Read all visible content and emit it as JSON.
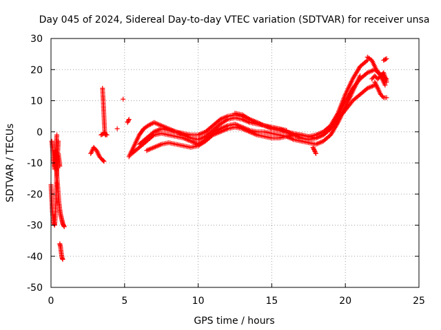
{
  "chart_data": {
    "type": "scatter",
    "title": "Day 045 of 2024, Sidereal Day-to-day VTEC variation (SDTVAR) for receiver unsa",
    "xlabel": "GPS time / hours",
    "ylabel": "SDTVAR / TECUs",
    "xlim": [
      0,
      25
    ],
    "ylim": [
      -50,
      30
    ],
    "xticks": [
      "0",
      "5",
      "10",
      "15",
      "20",
      "25"
    ],
    "yticks": [
      "-50",
      "-40",
      "-30",
      "-20",
      "-10",
      "0",
      "10",
      "20",
      "30"
    ],
    "grid": true,
    "marker": "+",
    "series": [
      {
        "name": "SDTVAR",
        "color": "#ff0000",
        "segments": [
          {
            "x": [
              0.0,
              0.05,
              0.1,
              0.15,
              0.2,
              0.25,
              0.3,
              0.35,
              0.4,
              0.45,
              0.5
            ],
            "y": [
              -17,
              -22,
              -26,
              -28,
              -29.5,
              -30,
              -27,
              -20,
              -12,
              -7,
              -3
            ]
          },
          {
            "x": [
              0.05,
              0.1,
              0.15,
              0.2,
              0.25,
              0.3,
              0.35,
              0.4
            ],
            "y": [
              -3,
              -5,
              -8,
              -10,
              -12,
              -8,
              -4,
              -1
            ]
          },
          {
            "x": [
              0.3,
              0.35,
              0.4,
              0.45,
              0.5,
              0.55,
              0.6,
              0.65,
              0.7,
              0.75,
              0.8,
              0.85,
              0.9
            ],
            "y": [
              -6,
              -10,
              -14,
              -17,
              -20,
              -23,
              -25,
              -26.5,
              -27.5,
              -28.5,
              -29.5,
              -30,
              -30.5
            ]
          },
          {
            "x": [
              0.5,
              0.55,
              0.6
            ],
            "y": [
              -7,
              -9,
              -11
            ]
          },
          {
            "x": [
              0.6,
              0.65,
              0.7,
              0.75,
              0.8
            ],
            "y": [
              -36,
              -37,
              -39,
              -40.5,
              -41
            ]
          },
          {
            "x": [
              2.7,
              2.9,
              3.1,
              3.3,
              3.5,
              3.6
            ],
            "y": [
              -7,
              -5,
              -6,
              -8,
              -9,
              -9.5
            ]
          },
          {
            "x": [
              3.5,
              3.55,
              3.6,
              3.65,
              3.7
            ],
            "y": [
              14,
              10,
              5,
              0,
              -1
            ]
          },
          {
            "x": [
              3.4,
              3.6,
              3.8
            ],
            "y": [
              -1,
              -0.5,
              -1
            ]
          },
          {
            "x": [
              4.5
            ],
            "y": [
              1
            ]
          },
          {
            "x": [
              4.9
            ],
            "y": [
              10.5
            ]
          },
          {
            "x": [
              5.2,
              5.3
            ],
            "y": [
              3,
              4
            ]
          },
          {
            "x": [
              5.3,
              5.5,
              5.8,
              6.0,
              6.3,
              6.6,
              7.0,
              7.5,
              8.0,
              8.5,
              9.0,
              9.5,
              10.0,
              10.5,
              11.0,
              11.5,
              12.0,
              12.5,
              13.0,
              13.5,
              14.0,
              14.5,
              15.0,
              15.5,
              16.0,
              16.5,
              17.0,
              17.5,
              18.0,
              18.5,
              19.0,
              19.5,
              20.0,
              20.5,
              21.0,
              21.5,
              22.0,
              22.5,
              22.8
            ],
            "y": [
              -8,
              -6,
              -3,
              -1,
              1,
              2,
              3,
              2,
              1,
              0,
              -1,
              -2,
              -2.5,
              -1.5,
              0.5,
              2.5,
              4,
              4.5,
              4,
              3,
              2.5,
              2,
              1.5,
              1,
              0,
              -1,
              -2,
              -2.5,
              -2,
              -1,
              1,
              5,
              10,
              14,
              17,
              19,
              20,
              18,
              17
            ]
          },
          {
            "x": [
              5.5,
              6.0,
              6.5,
              7.0,
              7.5,
              8.0,
              8.5,
              9.0,
              9.5,
              10.0,
              10.5,
              11.0,
              11.5,
              12.0,
              12.5,
              13.0,
              13.5,
              14.0,
              14.5,
              15.0,
              15.5,
              16.0,
              16.5,
              17.0,
              17.5,
              18.0,
              18.5,
              19.0,
              19.5,
              20.0,
              20.5,
              21.0
            ],
            "y": [
              -7,
              -5,
              -3,
              -1,
              -0.5,
              -1,
              -1.5,
              -2,
              -3,
              -4,
              -2.5,
              -0.5,
              1,
              2,
              2.5,
              1.5,
              0.5,
              0,
              0,
              -0.5,
              -1,
              -1.5,
              -2.5,
              -3,
              -3.5,
              -4,
              -3,
              -1,
              3,
              8,
              13,
              18
            ]
          },
          {
            "x": [
              6.0,
              6.5,
              7.0,
              7.5,
              8.0,
              8.5,
              9.0,
              9.5,
              10.0,
              10.5,
              11.0,
              11.5,
              12.0,
              12.5,
              13.0,
              13.5,
              14.0,
              14.5,
              15.0,
              15.5,
              16.0,
              16.5,
              17.0,
              17.5,
              18.0,
              18.5,
              19.0,
              19.5,
              20.0,
              20.5,
              21.0,
              21.5
            ],
            "y": [
              -4,
              -2,
              0,
              1,
              0.5,
              0,
              -0.5,
              -1,
              -1,
              0,
              2,
              4,
              5,
              5.5,
              5,
              4,
              3,
              2,
              1,
              0.5,
              0,
              -0.5,
              -1,
              -1.5,
              -1,
              0,
              2,
              6,
              12,
              17,
              21,
              23
            ]
          },
          {
            "x": [
              6.5,
              7.0,
              7.5,
              8.0,
              8.5,
              9.0,
              9.5,
              10.0,
              10.5,
              11.0,
              11.5,
              12.0,
              12.5,
              13.0,
              13.5,
              14.0,
              14.5,
              15.0,
              15.5,
              16.0,
              16.5,
              17.0,
              17.5,
              18.0,
              18.5,
              19.0,
              19.5,
              20.0,
              20.5,
              21.0,
              21.5,
              22.0
            ],
            "y": [
              -6,
              -5,
              -4,
              -3.5,
              -4,
              -4.5,
              -5,
              -4.5,
              -3,
              -1,
              0,
              1,
              1.5,
              1,
              0,
              -1,
              -1.5,
              -2,
              -2,
              -1.5,
              -1,
              -1,
              -1.5,
              -2,
              -1,
              1,
              4,
              7,
              10,
              12,
              14,
              15
            ]
          },
          {
            "x": [
              12.5,
              13.0,
              13.5,
              14.0,
              14.5,
              15.0,
              15.5,
              16.0
            ],
            "y": [
              6,
              5.5,
              4,
              3,
              2,
              1.5,
              1,
              0.5
            ]
          },
          {
            "x": [
              17.8,
              17.9,
              18.0
            ],
            "y": [
              -5,
              -6,
              -7
            ]
          },
          {
            "x": [
              21.5,
              21.8,
              22.1,
              22.4,
              22.7
            ],
            "y": [
              24,
              23,
              20,
              18,
              15
            ]
          },
          {
            "x": [
              22.0,
              22.2,
              22.4,
              22.6,
              22.8
            ],
            "y": [
              16,
              14,
              12,
              11,
              11
            ]
          },
          {
            "x": [
              21.8,
              22.0,
              22.2,
              22.4,
              22.6,
              22.8
            ],
            "y": [
              17,
              18,
              17,
              18,
              19,
              16
            ]
          },
          {
            "x": [
              22.6,
              22.8
            ],
            "y": [
              23,
              23.5
            ]
          }
        ]
      }
    ]
  }
}
